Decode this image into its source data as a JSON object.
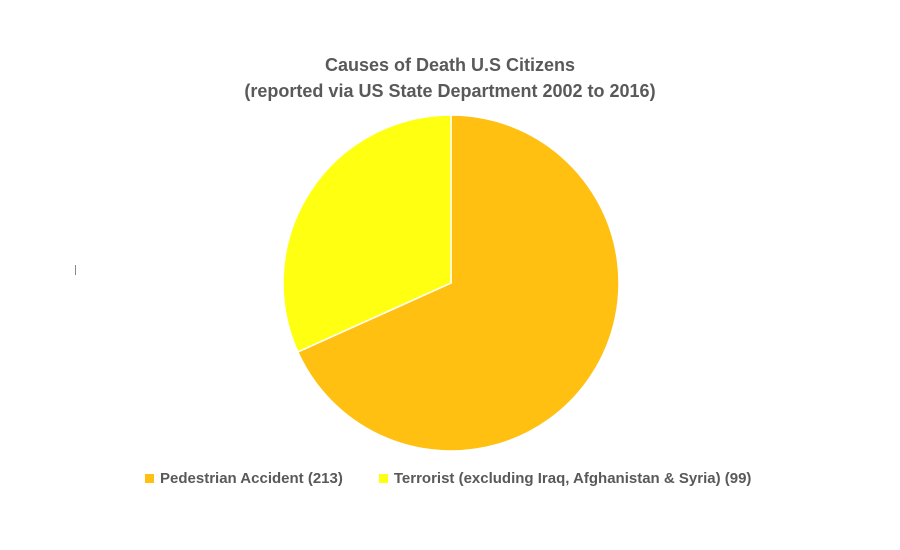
{
  "chart_data": {
    "type": "pie",
    "title": "Causes of Death U.S Citizens",
    "subtitle": "(reported via US State Department 2002 to 2016)",
    "categories": [
      "Pedestrian Accident (213)",
      "Terrorist (excluding Iraq, Afghanistan & Syria) (99)"
    ],
    "values": [
      213,
      99
    ],
    "colors": [
      "#FFC011",
      "#FFFF11"
    ],
    "legend_placement": "bottom"
  }
}
